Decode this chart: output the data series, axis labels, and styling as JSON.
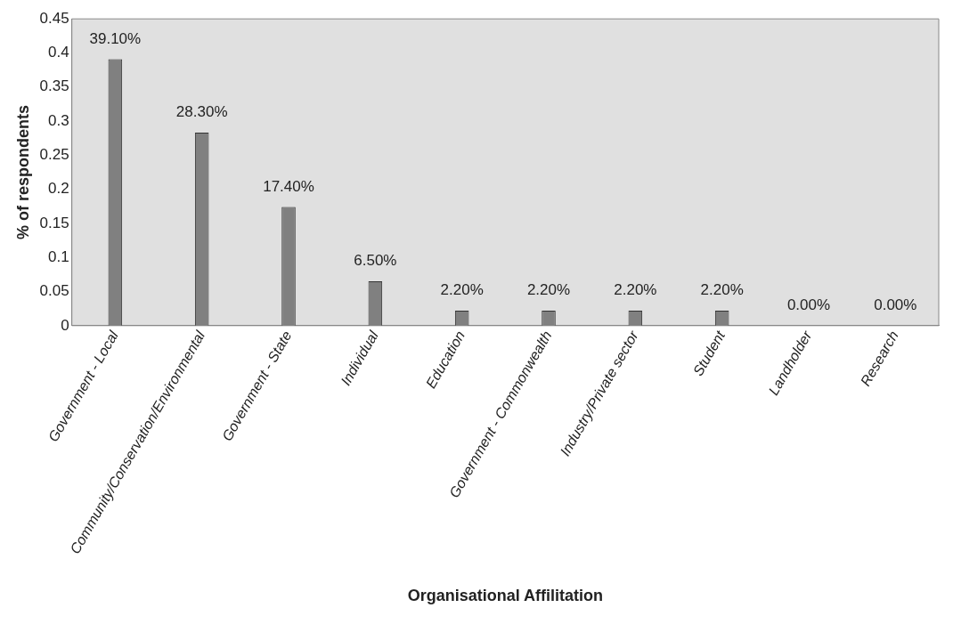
{
  "chart_data": {
    "type": "bar",
    "xlabel": "Organisational Affilitation",
    "ylabel": "% of respondents",
    "categories": [
      "Government - Local",
      "Community/Conservation/Environmental",
      "Government - State",
      "Individual",
      "Education",
      "Government - Commonwealth",
      "Industry/Private sector",
      "Student",
      "Landholder",
      "Research"
    ],
    "values": [
      0.391,
      0.283,
      0.174,
      0.065,
      0.022,
      0.022,
      0.022,
      0.022,
      0,
      0
    ],
    "value_labels": [
      "39.10%",
      "28.30%",
      "17.40%",
      "6.50%",
      "2.20%",
      "2.20%",
      "2.20%",
      "2.20%",
      "0.00%",
      "0.00%"
    ],
    "color": "#808080",
    "ylim": [
      0,
      0.45
    ],
    "yticks": [
      0,
      0.05,
      0.1,
      0.15,
      0.2,
      0.25,
      0.3,
      0.35,
      0.4,
      0.45
    ],
    "grid": false,
    "legend": false
  }
}
